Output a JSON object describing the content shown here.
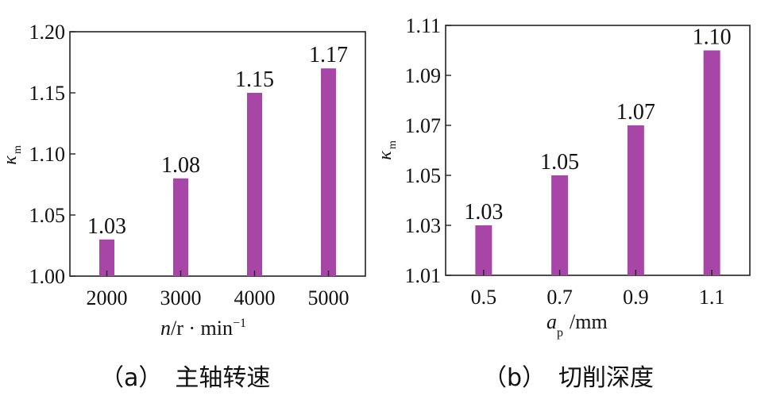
{
  "chart_data": [
    {
      "type": "bar",
      "ylabel_symbol": "κ",
      "ylabel_sub": "m",
      "xlabel_var": "n",
      "xlabel_unit": "/r · min",
      "xlabel_sup": "−1",
      "categories": [
        "2000",
        "3000",
        "4000",
        "5000"
      ],
      "values": [
        1.03,
        1.08,
        1.15,
        1.17
      ],
      "data_labels": [
        "1.03",
        "1.08",
        "1.15",
        "1.17"
      ],
      "ylim": [
        1.0,
        1.2
      ],
      "yticks": [
        "1.00",
        "1.05",
        "1.10",
        "1.15",
        "1.20"
      ],
      "grid": false,
      "bar_color": "#a846a8",
      "caption_tag": "（a）",
      "caption_text": "主轴转速"
    },
    {
      "type": "bar",
      "ylabel_symbol": "κ",
      "ylabel_sub": "m",
      "xlabel_var": "a",
      "xlabel_sub": "p",
      "xlabel_unit": "/mm",
      "categories": [
        "0.5",
        "0.7",
        "0.9",
        "1.1"
      ],
      "values": [
        1.03,
        1.05,
        1.07,
        1.1
      ],
      "data_labels": [
        "1.03",
        "1.05",
        "1.07",
        "1.10"
      ],
      "ylim": [
        1.01,
        1.11
      ],
      "yticks": [
        "1.01",
        "1.03",
        "1.05",
        "1.07",
        "1.09",
        "1.11"
      ],
      "grid": false,
      "bar_color": "#a846a8",
      "caption_tag": "（b）",
      "caption_text": "切削深度"
    }
  ]
}
